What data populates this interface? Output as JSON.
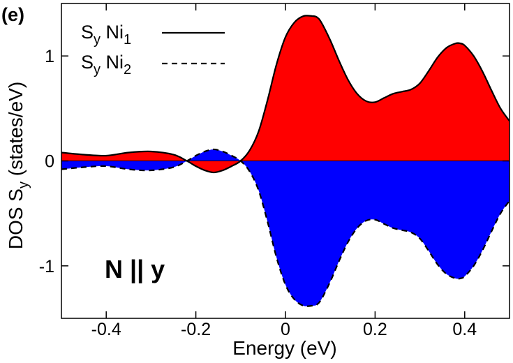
{
  "chart_data": {
    "type": "area",
    "panel_label": "(e)",
    "annotation": "N || y",
    "xlabel": "Energy (eV)",
    "ylabel": {
      "main": "DOS S",
      "sub": "y",
      "unit": " (states/eV)"
    },
    "xlim": [
      -0.5,
      0.5
    ],
    "ylim": [
      -1.5,
      1.5
    ],
    "xticks": [
      -0.4,
      -0.2,
      0,
      0.2,
      0.4
    ],
    "xtick_labels": [
      "-0.4",
      "-0.2",
      "0",
      "0.2",
      "0.4"
    ],
    "yticks": [
      -1,
      0,
      1
    ],
    "ytick_labels": [
      "-1",
      "0",
      "1"
    ],
    "grid": false,
    "legend_position": "top-left",
    "series": [
      {
        "name": {
          "s": "S",
          "s_sub": "y",
          "ni": " Ni",
          "ni_sub": "1"
        },
        "line_style": "solid",
        "fill_color": "#ff0000",
        "x": [
          -0.5,
          -0.45,
          -0.4,
          -0.35,
          -0.3,
          -0.25,
          -0.22,
          -0.2,
          -0.18,
          -0.16,
          -0.14,
          -0.12,
          -0.1,
          -0.08,
          -0.06,
          -0.04,
          -0.02,
          0.0,
          0.02,
          0.04,
          0.06,
          0.07,
          0.08,
          0.1,
          0.12,
          0.14,
          0.16,
          0.18,
          0.2,
          0.22,
          0.24,
          0.26,
          0.28,
          0.3,
          0.32,
          0.34,
          0.36,
          0.38,
          0.39,
          0.4,
          0.42,
          0.44,
          0.46,
          0.48,
          0.5
        ],
        "values": [
          0.08,
          0.06,
          0.05,
          0.08,
          0.09,
          0.06,
          0.0,
          -0.05,
          -0.09,
          -0.11,
          -0.09,
          -0.05,
          0.0,
          0.1,
          0.28,
          0.58,
          0.92,
          1.18,
          1.32,
          1.38,
          1.38,
          1.37,
          1.32,
          1.15,
          0.95,
          0.77,
          0.64,
          0.57,
          0.56,
          0.6,
          0.64,
          0.66,
          0.68,
          0.74,
          0.86,
          0.99,
          1.08,
          1.12,
          1.12,
          1.1,
          1.0,
          0.85,
          0.67,
          0.5,
          0.38
        ]
      },
      {
        "name": {
          "s": "S",
          "s_sub": "y",
          "ni": " Ni",
          "ni_sub": "2"
        },
        "line_style": "dashed",
        "fill_color": "#0000ff",
        "x": [
          -0.5,
          -0.45,
          -0.4,
          -0.35,
          -0.3,
          -0.25,
          -0.22,
          -0.2,
          -0.18,
          -0.16,
          -0.14,
          -0.12,
          -0.1,
          -0.08,
          -0.06,
          -0.04,
          -0.02,
          0.0,
          0.02,
          0.04,
          0.06,
          0.07,
          0.08,
          0.1,
          0.12,
          0.14,
          0.16,
          0.18,
          0.2,
          0.22,
          0.24,
          0.26,
          0.28,
          0.3,
          0.32,
          0.34,
          0.36,
          0.38,
          0.39,
          0.4,
          0.42,
          0.44,
          0.46,
          0.48,
          0.5
        ],
        "values": [
          -0.08,
          -0.06,
          -0.05,
          -0.08,
          -0.09,
          -0.06,
          0.0,
          0.05,
          0.09,
          0.11,
          0.09,
          0.05,
          0.0,
          -0.1,
          -0.28,
          -0.58,
          -0.92,
          -1.18,
          -1.32,
          -1.38,
          -1.38,
          -1.37,
          -1.32,
          -1.15,
          -0.95,
          -0.77,
          -0.64,
          -0.57,
          -0.56,
          -0.6,
          -0.64,
          -0.66,
          -0.68,
          -0.74,
          -0.86,
          -0.99,
          -1.08,
          -1.12,
          -1.12,
          -1.1,
          -1.0,
          -0.85,
          -0.67,
          -0.5,
          -0.38
        ]
      }
    ]
  }
}
